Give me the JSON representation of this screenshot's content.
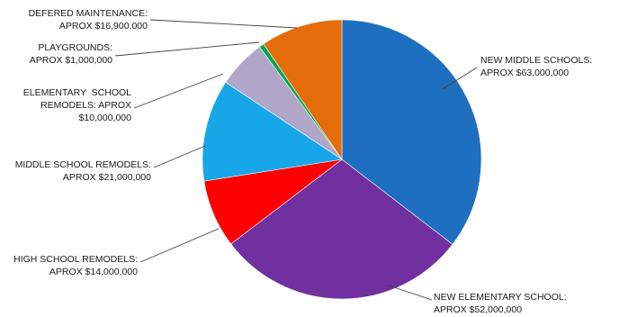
{
  "chart_data": {
    "type": "pie",
    "title": "",
    "unit": "USD",
    "slices": [
      {
        "label_lines": [
          "NEW MIDDLE SCHOOLS:",
          "APROX $63,000,000"
        ],
        "value": 63000000,
        "color": "#1f6fc0"
      },
      {
        "label_lines": [
          "NEW ELEMENTARY SCHOOL:",
          "APROX $52,000,000"
        ],
        "value": 52000000,
        "color": "#7030a0"
      },
      {
        "label_lines": [
          "HIGH SCHOOL REMODELS:",
          "APROX $14,000,000"
        ],
        "value": 14000000,
        "color": "#ff0000"
      },
      {
        "label_lines": [
          "MIDDLE SCHOOL REMODELS:",
          "APROX $21,000,000"
        ],
        "value": 21000000,
        "color": "#17a6e8"
      },
      {
        "label_lines": [
          "ELEMENTARY  SCHOOL",
          "REMODELS: APROX",
          "$10,000,000"
        ],
        "value": 10000000,
        "color": "#b0a6c8"
      },
      {
        "label_lines": [
          "PLAYGROUNDS:",
          "APROX $1,000,000"
        ],
        "value": 1000000,
        "color": "#00a651"
      },
      {
        "label_lines": [
          "DEFERED MAINTENANCE:",
          "APROX $16,900,000"
        ],
        "value": 16900000,
        "color": "#e46c0a"
      }
    ]
  }
}
